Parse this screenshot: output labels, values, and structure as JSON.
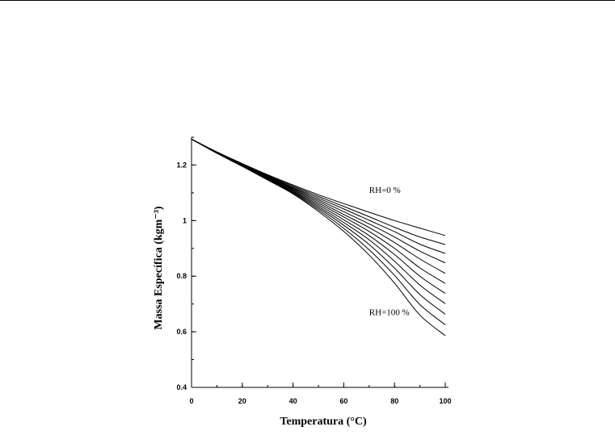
{
  "chart_data": {
    "type": "line",
    "title": "",
    "xlabel": "Temperatura (°C)",
    "ylabel": "Massa Específica (kgm⁻³)",
    "xlim": [
      0,
      100
    ],
    "ylim": [
      0.4,
      1.3
    ],
    "xticks": [
      0,
      20,
      40,
      60,
      80,
      100
    ],
    "yticks": [
      0.4,
      0.6,
      0.8,
      1,
      1.2
    ],
    "xtick_labels": [
      "0",
      "20",
      "40",
      "60",
      "80",
      "100"
    ],
    "ytick_labels": [
      "0.4",
      "0.6",
      "0.8",
      "1",
      "1.2"
    ],
    "x_minor_step": 10,
    "y_minor_step": 0.1,
    "grid": false,
    "x": [
      0,
      10,
      20,
      30,
      40,
      50,
      60,
      70,
      80,
      90,
      100
    ],
    "series": [
      {
        "values": [
          1.293,
          1.247,
          1.205,
          1.165,
          1.128,
          1.093,
          1.061,
          1.03,
          1.0,
          0.973,
          0.946
        ]
      },
      {
        "values": [
          1.293,
          1.246,
          1.204,
          1.163,
          1.124,
          1.087,
          1.051,
          1.014,
          0.976,
          0.941,
          0.914
        ]
      },
      {
        "values": [
          1.293,
          1.246,
          1.203,
          1.161,
          1.12,
          1.081,
          1.042,
          1.001,
          0.96,
          0.915,
          0.882
        ]
      },
      {
        "values": [
          1.293,
          1.245,
          1.202,
          1.159,
          1.117,
          1.075,
          1.032,
          0.988,
          0.941,
          0.89,
          0.848
        ]
      },
      {
        "values": [
          1.293,
          1.245,
          1.201,
          1.158,
          1.114,
          1.069,
          1.022,
          0.975,
          0.921,
          0.862,
          0.81
        ]
      },
      {
        "values": [
          1.293,
          1.245,
          1.2,
          1.156,
          1.111,
          1.063,
          1.013,
          0.961,
          0.9,
          0.83,
          0.774
        ]
      },
      {
        "values": [
          1.293,
          1.244,
          1.199,
          1.154,
          1.108,
          1.057,
          1.003,
          0.946,
          0.878,
          0.8,
          0.738
        ]
      },
      {
        "values": [
          1.293,
          1.244,
          1.198,
          1.152,
          1.105,
          1.051,
          0.993,
          0.931,
          0.854,
          0.768,
          0.701
        ]
      },
      {
        "values": [
          1.293,
          1.243,
          1.197,
          1.15,
          1.102,
          1.045,
          0.983,
          0.914,
          0.829,
          0.734,
          0.663
        ]
      },
      {
        "values": [
          1.293,
          1.243,
          1.196,
          1.148,
          1.099,
          1.039,
          0.972,
          0.895,
          0.803,
          0.698,
          0.625
        ]
      },
      {
        "values": [
          1.293,
          1.242,
          1.195,
          1.146,
          1.096,
          1.033,
          0.961,
          0.876,
          0.775,
          0.66,
          0.586
        ]
      }
    ],
    "annotations": [
      {
        "text": "RH=0 %",
        "x": 70,
        "y": 1.1
      },
      {
        "text": "RH=100 %",
        "x": 70,
        "y": 0.66
      }
    ],
    "line_color": "#000000"
  }
}
